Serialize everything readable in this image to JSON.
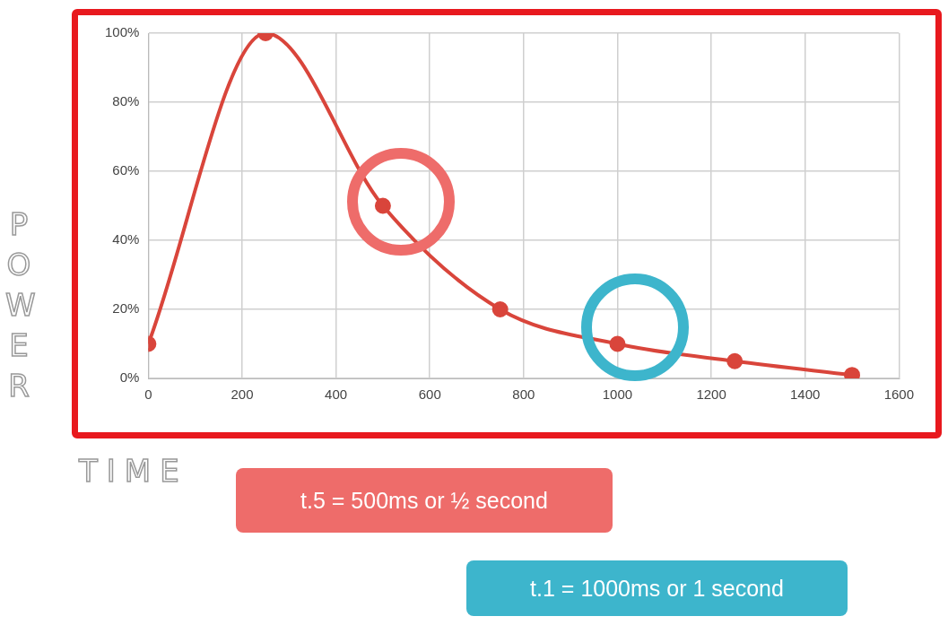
{
  "chart_data": {
    "type": "line",
    "xlabel": "TIME",
    "ylabel": "POWER",
    "x": [
      0,
      250,
      500,
      750,
      1000,
      1250,
      1500
    ],
    "series": [
      {
        "color": "#d9453b",
        "values": [
          10,
          100,
          50,
          20,
          10,
          5,
          1
        ]
      }
    ],
    "xlim": [
      0,
      1600
    ],
    "xticks": [
      0,
      200,
      400,
      600,
      800,
      1000,
      1200,
      1400,
      1600
    ],
    "ylim": [
      0,
      100
    ],
    "yticks": [
      {
        "value": 0,
        "label": "0%"
      },
      {
        "value": 20,
        "label": "20%"
      },
      {
        "value": 40,
        "label": "40%"
      },
      {
        "value": 60,
        "label": "60%"
      },
      {
        "value": 80,
        "label": "80%"
      },
      {
        "value": 100,
        "label": "100%"
      }
    ],
    "grid": true,
    "legend": false,
    "marker": "circle",
    "line_style": "solid",
    "annotations": [
      "t.5 = 500ms or ½ second",
      "t.1 = 1000ms or 1 second"
    ]
  }
}
